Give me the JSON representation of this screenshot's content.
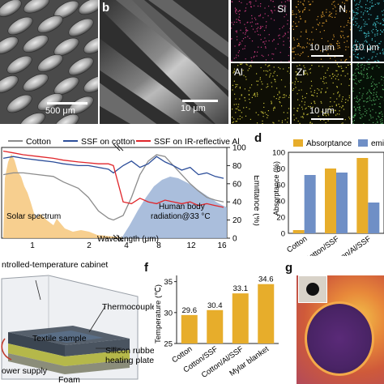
{
  "panel_a": {
    "scale": "500 μm"
  },
  "panel_b": {
    "label": "b",
    "scale": "10 μm"
  },
  "eds_maps": [
    {
      "element": "Si",
      "scale": "",
      "color": "#c23a7a"
    },
    {
      "element": "N",
      "scale": "10 μm",
      "color": "#d89a2e"
    },
    {
      "element": "",
      "scale": "10 μm",
      "color": "#3fb9c2"
    },
    {
      "element": "Al",
      "scale": "",
      "color": "#c9c23a"
    },
    {
      "element": "Zr",
      "scale": "10 μm",
      "color": "#c9c23a"
    },
    {
      "element": "",
      "scale": "",
      "color": "#4da35a"
    }
  ],
  "panel_c": {
    "legend": [
      "Cotton",
      "SSF on cotton",
      "SSF on IR-reflective Al"
    ],
    "xlabel": "Wavelength (μm)",
    "ylabel_right": "Emittance (%)",
    "xticks_left": [
      "1",
      "2"
    ],
    "xticks_right": [
      "4",
      "8",
      "12",
      "16"
    ],
    "yticks": [
      "0",
      "20",
      "40",
      "60",
      "80",
      "100"
    ],
    "annot_solar": "Solar spectrum",
    "annot_body_1": "Human body",
    "annot_body_2": "radiation@33 °C",
    "colors": {
      "cotton": "#8c8c8c",
      "ssf_cotton": "#2c4e9a",
      "ssf_al": "#e0262b",
      "solar": "#f6c77b",
      "body": "#9bb3d6"
    }
  },
  "panel_d": {
    "label": "d",
    "legend": [
      "Absorptance",
      "emi"
    ],
    "ylabel": "Absorptance (%)",
    "yticks": [
      "0",
      "20",
      "40",
      "60",
      "80",
      "100"
    ]
  },
  "panel_e": {
    "title": "ntrolled-temperature cabinet",
    "labels": [
      "Thermocouple",
      "Textile sample",
      "Silicon rubber",
      "heating plate",
      "ower supply",
      "Foam"
    ]
  },
  "panel_f": {
    "label": "f",
    "ylabel": "Temperature (℃)",
    "yticks": [
      "25",
      "30",
      "35"
    ]
  },
  "panel_g": {
    "label": "g"
  },
  "chart_data": [
    {
      "type": "bar",
      "panel": "d",
      "categories": [
        "Cotton",
        "Cotton/SSF",
        "Cotton/Al/SSF"
      ],
      "series": [
        {
          "name": "Absorptance",
          "values": [
            4,
            80,
            93
          ],
          "color": "#e7ad2b"
        },
        {
          "name": "emi",
          "values": [
            72,
            75,
            38
          ],
          "color": "#6f8fc6"
        }
      ],
      "ylim": [
        0,
        100
      ]
    },
    {
      "type": "bar",
      "panel": "f",
      "categories": [
        "Cotton",
        "Cotton/SSF",
        "Cotton/Al/SSF",
        "Mylar blanket"
      ],
      "values": [
        29.6,
        30.4,
        33.1,
        34.6
      ],
      "data_labels": [
        "29.6",
        "30.4",
        "33.1",
        "34.6"
      ],
      "ylim": [
        25,
        36
      ],
      "color": "#e7ad2b"
    },
    {
      "type": "line",
      "panel": "c",
      "x_unit": "μm",
      "ylim": [
        0,
        100
      ],
      "series": [
        {
          "name": "Cotton",
          "color": "#8c8c8c",
          "x": [
            0.3,
            0.5,
            0.7,
            1.0,
            1.3,
            1.5,
            1.8,
            2.0,
            2.2,
            2.4,
            2.5,
            4,
            5,
            6,
            7,
            8,
            9,
            10,
            11,
            12,
            13,
            14,
            15,
            16
          ],
          "y": [
            70,
            72,
            72,
            70,
            68,
            62,
            55,
            45,
            30,
            22,
            20,
            25,
            45,
            70,
            85,
            92,
            90,
            80,
            70,
            60,
            52,
            45,
            42,
            40
          ]
        },
        {
          "name": "SSF on cotton",
          "color": "#2c4e9a",
          "x": [
            0.3,
            0.5,
            0.7,
            1.0,
            1.3,
            1.5,
            1.8,
            2.0,
            2.2,
            2.4,
            2.5,
            4,
            5,
            6,
            7,
            8,
            9,
            10,
            11,
            12,
            13,
            14,
            15,
            16
          ],
          "y": [
            88,
            90,
            88,
            86,
            84,
            82,
            80,
            80,
            78,
            76,
            72,
            80,
            85,
            78,
            82,
            90,
            84,
            80,
            75,
            78,
            70,
            72,
            68,
            66
          ]
        },
        {
          "name": "SSF on IR-reflective Al",
          "color": "#e0262b",
          "x": [
            0.3,
            0.5,
            0.7,
            1.0,
            1.3,
            1.5,
            1.8,
            2.0,
            2.2,
            2.4,
            2.5,
            4,
            5,
            6,
            7,
            8,
            9,
            10,
            11,
            12,
            13,
            14,
            15,
            16
          ],
          "y": [
            96,
            94,
            92,
            90,
            88,
            86,
            84,
            83,
            82,
            82,
            80,
            40,
            38,
            44,
            40,
            38,
            42,
            40,
            38,
            40,
            36,
            38,
            36,
            34
          ]
        }
      ]
    }
  ]
}
